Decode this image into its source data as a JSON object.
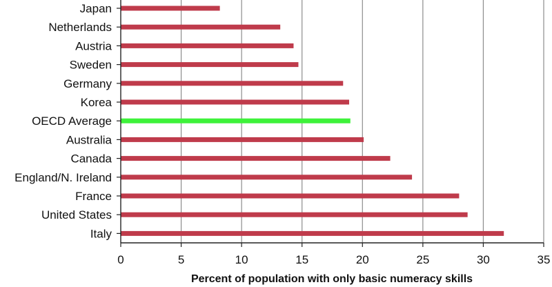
{
  "chart_data": {
    "type": "bar",
    "orientation": "horizontal",
    "title": "",
    "xlabel": "Percent of population with only basic numeracy skills",
    "ylabel": "",
    "xlim": [
      0,
      35
    ],
    "xticks": [
      0,
      5,
      10,
      15,
      20,
      25,
      30,
      35
    ],
    "grid": true,
    "categories": [
      "Japan",
      "Netherlands",
      "Austria",
      "Sweden",
      "Germany",
      "Korea",
      "OECD Average",
      "Australia",
      "Canada",
      "England/N. Ireland",
      "France",
      "United States",
      "Italy"
    ],
    "values": [
      8.2,
      13.2,
      14.3,
      14.7,
      18.4,
      18.9,
      19.0,
      20.1,
      22.3,
      24.1,
      28.0,
      28.7,
      31.7
    ],
    "colors": {
      "bar": "#bf3b4b",
      "highlight": "#3ef23a",
      "grid": "#8c8c8c",
      "axis": "#222222"
    },
    "highlight_category": "OECD Average"
  }
}
